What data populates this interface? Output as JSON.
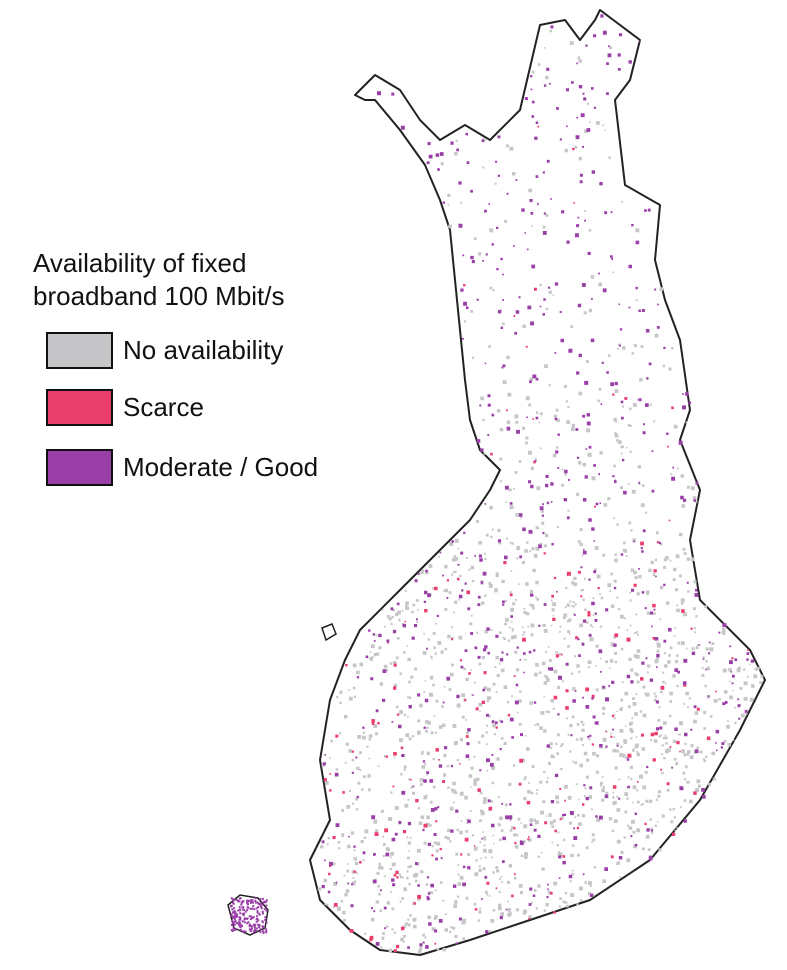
{
  "legend": {
    "title_lines": [
      "Availability of fixed",
      "broadband 100 Mbit/s"
    ],
    "entries": [
      {
        "label": "No availability",
        "color": "#c6c6c8"
      },
      {
        "label": "Scarce",
        "color": "#ea3f6c"
      },
      {
        "label": "Moderate / Good",
        "color": "#9a3ea8"
      }
    ]
  }
}
